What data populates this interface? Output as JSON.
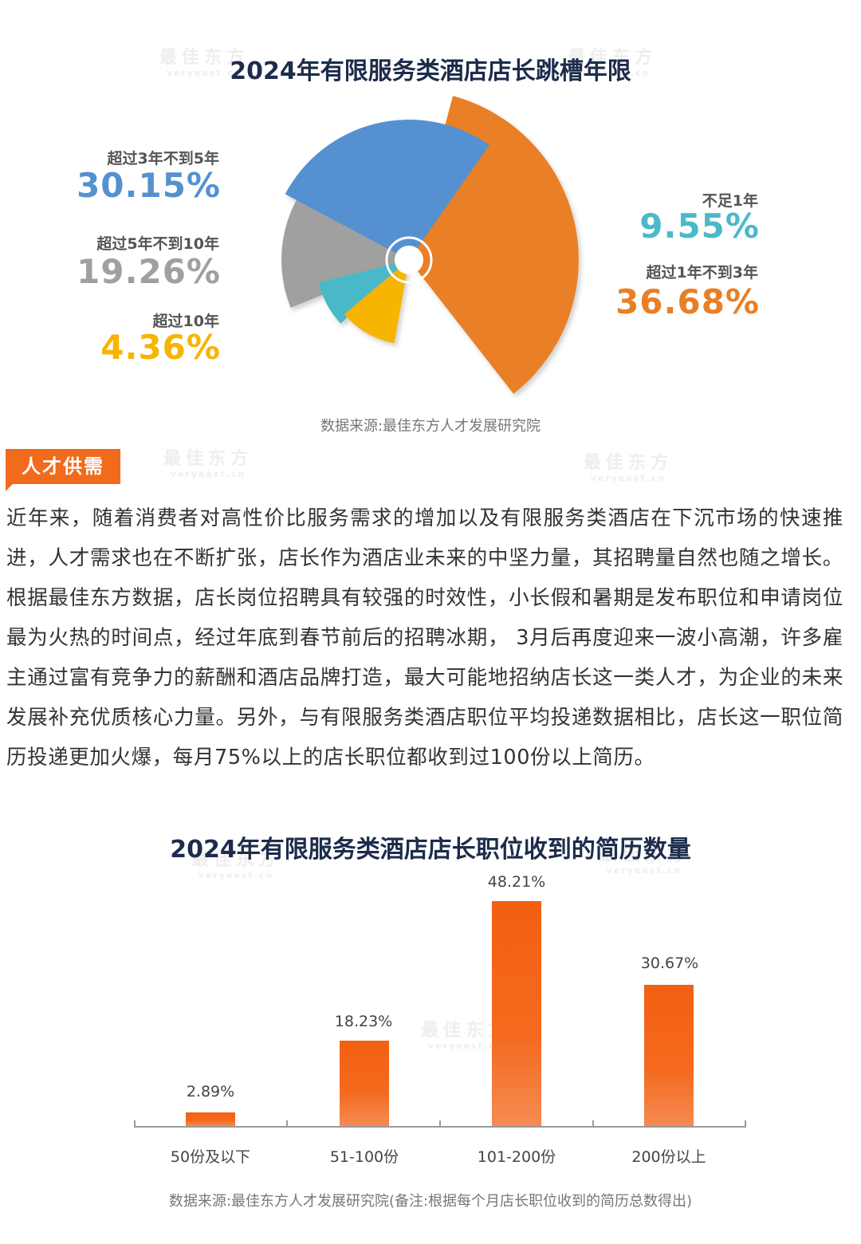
{
  "watermark": {
    "cn": "最佳东方",
    "en": "veryeast.cn"
  },
  "rose_chart": {
    "title": "2024年有限服务类酒店店长跳槽年限",
    "source": "数据来源:最佳东方人才发展研究院",
    "labels": {
      "y3to5": {
        "label": "超过3年不到5年",
        "value": "30.15%",
        "color": "#5591d0"
      },
      "y5to10": {
        "label": "超过5年不到10年",
        "value": "19.26%",
        "color": "#a0a0a0"
      },
      "over10": {
        "label": "超过10年",
        "value": "4.36%",
        "color": "#f7b400"
      },
      "under1": {
        "label": "不足1年",
        "value": "9.55%",
        "color": "#4ab9c9"
      },
      "y1to3": {
        "label": "超过1年不到3年",
        "value": "36.68%",
        "color": "#e97f25"
      }
    }
  },
  "section": {
    "badge": "人才供需"
  },
  "paragraph": "近年来，随着消费者对高性价比服务需求的增加以及有限服务类酒店在下沉市场的快速推进，人才需求也在不断扩张，店长作为酒店业未来的中坚力量，其招聘量自然也随之增长。根据最佳东方数据，店长岗位招聘具有较强的时效性，小长假和暑期是发布职位和申请岗位最为火热的时间点，经过年底到春节前后的招聘冰期， 3月后再度迎来一波小高潮，许多雇主通过富有竞争力的薪酬和酒店品牌打造，最大可能地招纳店长这一类人才，为企业的未来发展补充优质核心力量。另外，与有限服务类酒店职位平均投递数据相比，店长这一职位简历投递更加火爆，每月75%以上的店长职位都收到过100份以上简历。",
  "bar_chart": {
    "title": "2024年有限服务类酒店店长职位收到的简历数量",
    "source": "数据来源:最佳东方人才发展研究院(备注:根据每个月店长职位收到的简历总数得出)",
    "bars": [
      {
        "category": "50份及以下",
        "label": "2.89%"
      },
      {
        "category": "51-100份",
        "label": "18.23%"
      },
      {
        "category": "101-200份",
        "label": "48.21%"
      },
      {
        "category": "200份以上",
        "label": "30.67%"
      }
    ]
  },
  "chart_data": [
    {
      "type": "pie",
      "subtype": "nightingale-rose",
      "title": "2024年有限服务类酒店店长跳槽年限",
      "categories": [
        "不足1年",
        "超过1年不到3年",
        "超过3年不到5年",
        "超过5年不到10年",
        "超过10年"
      ],
      "values": [
        9.55,
        36.68,
        30.15,
        19.26,
        4.36
      ],
      "unit": "%",
      "colors": [
        "#4ab9c9",
        "#e97f25",
        "#5591d0",
        "#a0a0a0",
        "#f7b400"
      ],
      "source": "数据来源:最佳东方人才发展研究院"
    },
    {
      "type": "bar",
      "title": "2024年有限服务类酒店店长职位收到的简历数量",
      "categories": [
        "50份及以下",
        "51-100份",
        "101-200份",
        "200份以上"
      ],
      "values": [
        2.89,
        18.23,
        48.21,
        30.67
      ],
      "unit": "%",
      "xlabel": "",
      "ylabel": "",
      "ylim": [
        0,
        50
      ],
      "grid": false,
      "bar_color": "#f35f12",
      "source": "数据来源:最佳东方人才发展研究院(备注:根据每个月店长职位收到的简历总数得出)"
    }
  ]
}
